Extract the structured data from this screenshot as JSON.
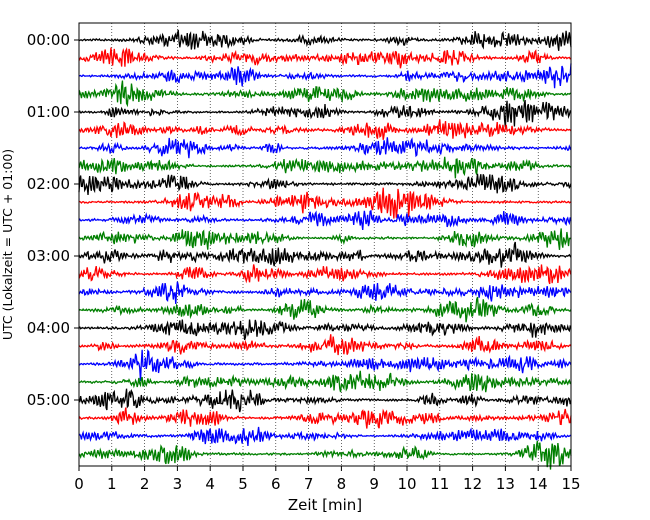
{
  "chart_data": {
    "type": "line",
    "title": "",
    "xlabel": "Zeit  [min]",
    "ylabel": "UTC (Lokalzeit = UTC + 01:00)",
    "xlim": [
      0,
      15
    ],
    "x_ticks": [
      0,
      1,
      2,
      3,
      4,
      5,
      6,
      7,
      8,
      9,
      10,
      11,
      12,
      13,
      14,
      15
    ],
    "x_tick_labels": [
      "0",
      "1",
      "2",
      "3",
      "4",
      "5",
      "6",
      "7",
      "8",
      "9",
      "10",
      "11",
      "12",
      "13",
      "14",
      "15"
    ],
    "y_tick_labels": [
      "00:00",
      "01:00",
      "02:00",
      "03:00",
      "04:00",
      "05:00"
    ],
    "trace_count": 24,
    "trace_interval_min": 15,
    "trace_colors": [
      "#000000",
      "#ff0000",
      "#0000ff",
      "#007f00"
    ],
    "grid": {
      "x": "dotted vertical lines at each minute",
      "y": "none"
    },
    "legend": "none",
    "series_description": "Seismogram traces stacked top-to-bottom, one per 15-minute interval, small-amplitude noise"
  }
}
